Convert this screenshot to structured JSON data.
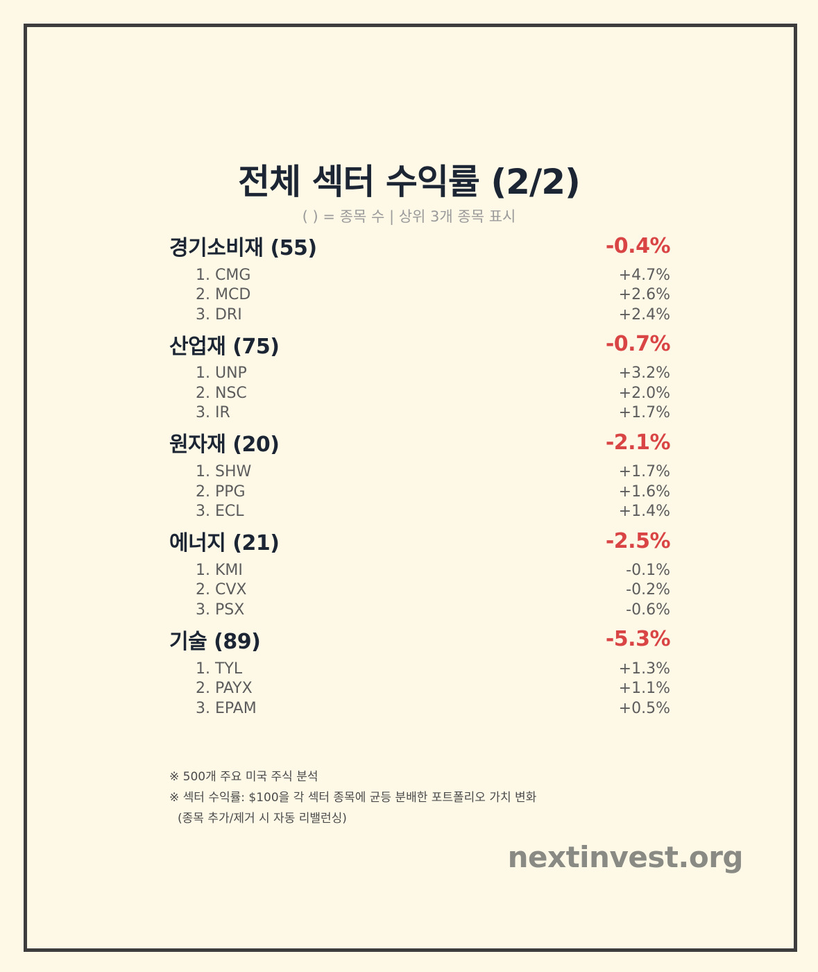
{
  "title": "전체 섹터 수익률 (2/2)",
  "subtitle": "( ) = 종목 수 | 상위 3개 종목 표시",
  "sectors": [
    {
      "name": "경기소비재 (55)",
      "return": "-0.4%",
      "stocks": [
        {
          "name": "1. CMG",
          "return": "+4.7%"
        },
        {
          "name": "2. MCD",
          "return": "+2.6%"
        },
        {
          "name": "3. DRI",
          "return": "+2.4%"
        }
      ]
    },
    {
      "name": "산업재 (75)",
      "return": "-0.7%",
      "stocks": [
        {
          "name": "1. UNP",
          "return": "+3.2%"
        },
        {
          "name": "2. NSC",
          "return": "+2.0%"
        },
        {
          "name": "3. IR",
          "return": "+1.7%"
        }
      ]
    },
    {
      "name": "원자재 (20)",
      "return": "-2.1%",
      "stocks": [
        {
          "name": "1. SHW",
          "return": "+1.7%"
        },
        {
          "name": "2. PPG",
          "return": "+1.6%"
        },
        {
          "name": "3. ECL",
          "return": "+1.4%"
        }
      ]
    },
    {
      "name": "에너지 (21)",
      "return": "-2.5%",
      "stocks": [
        {
          "name": "1. KMI",
          "return": "-0.1%"
        },
        {
          "name": "2. CVX",
          "return": "-0.2%"
        },
        {
          "name": "3. PSX",
          "return": "-0.6%"
        }
      ]
    },
    {
      "name": "기술 (89)",
      "return": "-5.3%",
      "stocks": [
        {
          "name": "1. TYL",
          "return": "+1.3%"
        },
        {
          "name": "2. PAYX",
          "return": "+1.1%"
        },
        {
          "name": "3. EPAM",
          "return": "+0.5%"
        }
      ]
    }
  ],
  "notes": [
    "※ 500개 주요 미국 주식 분석",
    "※ 섹터 수익률: $100을 각 섹터 종목에 균등 분배한 포트폴리오 가치 변화",
    "(종목 추가/제거 시 자동 리밸런싱)"
  ],
  "brand": "nextinvest.org",
  "colors": {
    "background": "#fef9e7",
    "border": "#3d3d3d",
    "negative": "#d94545",
    "title": "#1c2533",
    "brand": "#8a8a84"
  }
}
